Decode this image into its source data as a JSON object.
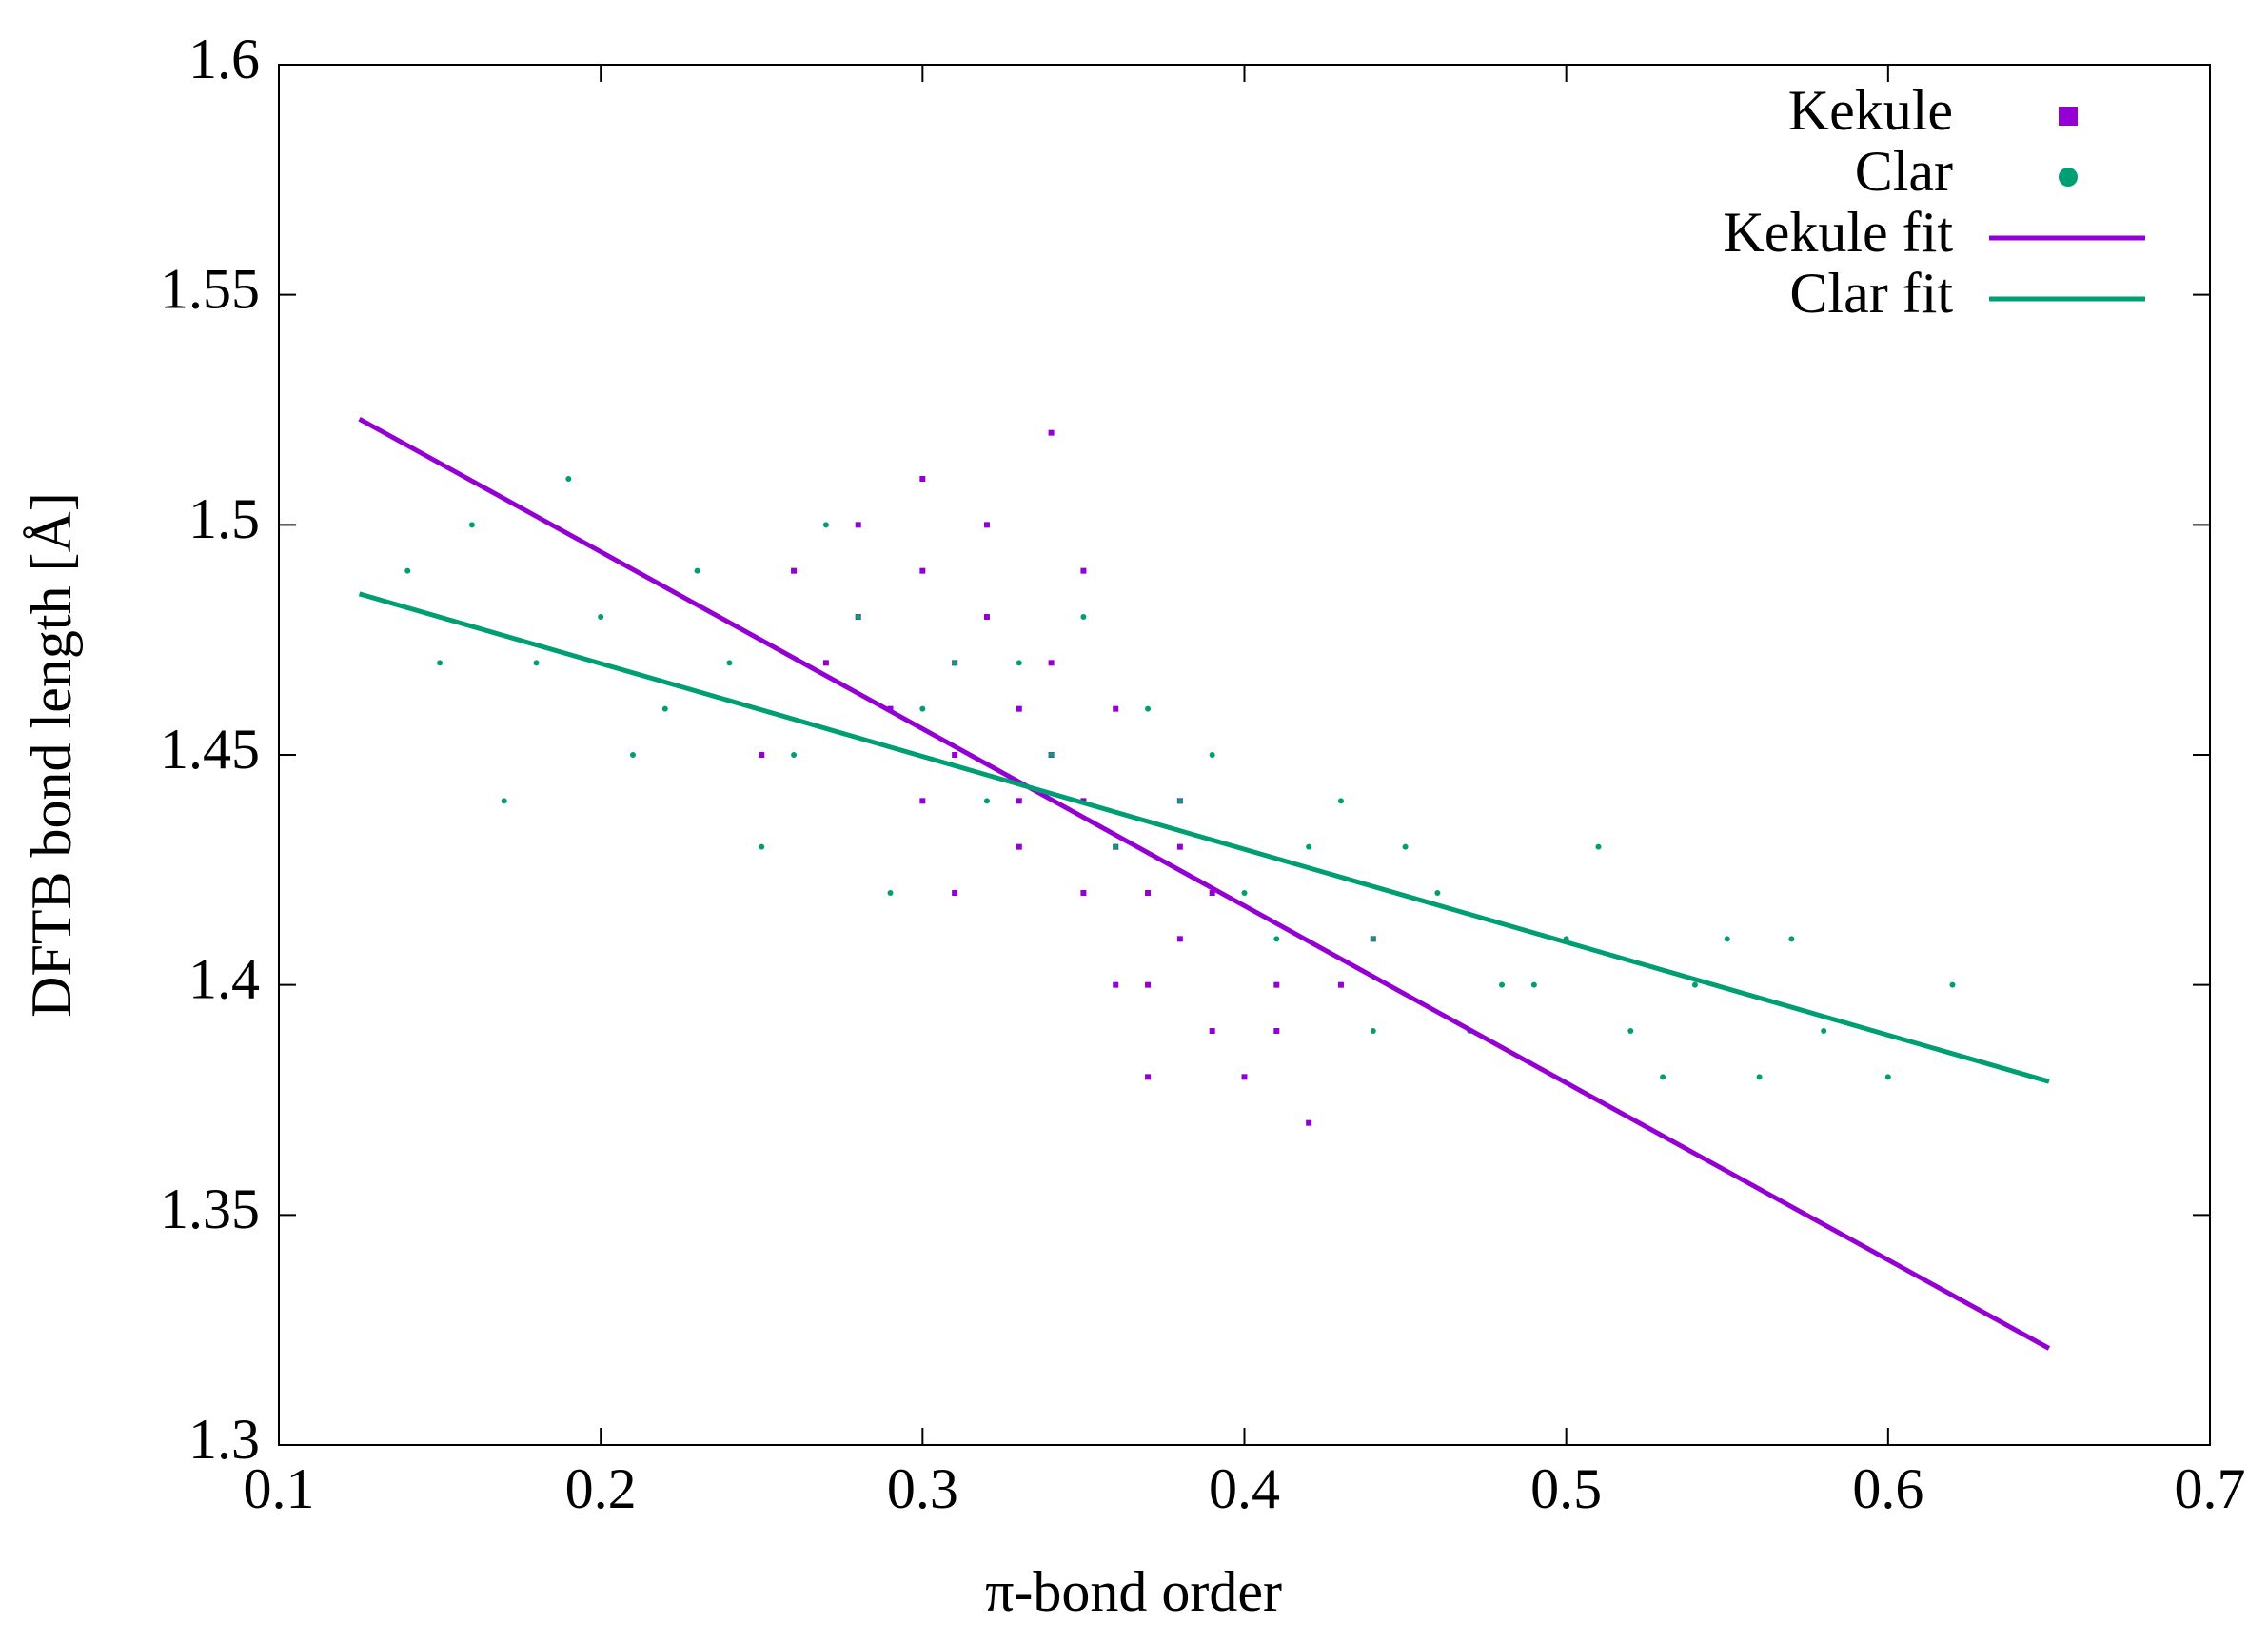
{
  "chart_data": {
    "type": "scatter",
    "x_label": "π-bond order",
    "y_label": "DFTB bond length [Å]",
    "xlim": [
      0.1,
      0.7
    ],
    "ylim": [
      1.3,
      1.6
    ],
    "xticks": [
      0.1,
      0.2,
      0.3,
      0.4,
      0.5,
      0.6,
      0.7
    ],
    "yticks": [
      1.3,
      1.35,
      1.4,
      1.45,
      1.5,
      1.55,
      1.6
    ],
    "grid": false,
    "legend": "top-right",
    "series": [
      {
        "name": "Kekule",
        "color": "#9400d3",
        "type": "scatter",
        "marker": "square",
        "x": [
          0.28,
          0.3,
          0.31,
          0.32,
          0.33,
          0.34,
          0.35,
          0.36,
          0.37,
          0.38,
          0.29,
          0.31,
          0.33,
          0.35,
          0.37,
          0.39,
          0.4,
          0.41,
          0.42,
          0.3,
          0.32,
          0.34,
          0.36,
          0.38,
          0.27,
          0.25,
          0.26,
          0.43,
          0.44,
          0.35,
          0.33,
          0.31,
          0.36,
          0.39,
          0.41,
          0.34,
          0.3,
          0.28,
          0.37,
          0.38
        ],
        "values": [
          1.48,
          1.49,
          1.47,
          1.5,
          1.46,
          1.45,
          1.44,
          1.43,
          1.42,
          1.41,
          1.46,
          1.45,
          1.43,
          1.42,
          1.4,
          1.39,
          1.38,
          1.39,
          1.37,
          1.51,
          1.48,
          1.47,
          1.46,
          1.44,
          1.47,
          1.45,
          1.49,
          1.4,
          1.41,
          1.49,
          1.44,
          1.42,
          1.4,
          1.42,
          1.4,
          1.52,
          1.44,
          1.5,
          1.38,
          1.43
        ]
      },
      {
        "name": "Clar",
        "color": "#009e73",
        "type": "scatter",
        "marker": "circle",
        "x": [
          0.14,
          0.16,
          0.18,
          0.2,
          0.22,
          0.24,
          0.26,
          0.28,
          0.3,
          0.32,
          0.34,
          0.36,
          0.38,
          0.4,
          0.42,
          0.44,
          0.46,
          0.48,
          0.5,
          0.52,
          0.54,
          0.56,
          0.58,
          0.6,
          0.15,
          0.19,
          0.23,
          0.27,
          0.31,
          0.35,
          0.39,
          0.43,
          0.47,
          0.51,
          0.55,
          0.21,
          0.25,
          0.29,
          0.33,
          0.37,
          0.41,
          0.45,
          0.49,
          0.53,
          0.62,
          0.17,
          0.44,
          0.57
        ],
        "values": [
          1.49,
          1.5,
          1.47,
          1.48,
          1.46,
          1.47,
          1.45,
          1.48,
          1.46,
          1.44,
          1.45,
          1.43,
          1.44,
          1.42,
          1.43,
          1.41,
          1.42,
          1.4,
          1.41,
          1.39,
          1.4,
          1.38,
          1.39,
          1.38,
          1.47,
          1.51,
          1.49,
          1.5,
          1.47,
          1.48,
          1.45,
          1.44,
          1.39,
          1.43,
          1.41,
          1.45,
          1.43,
          1.42,
          1.47,
          1.46,
          1.41,
          1.43,
          1.4,
          1.38,
          1.4,
          1.44,
          1.39,
          1.41
        ]
      },
      {
        "name": "Kekule fit",
        "color": "#9400d3",
        "type": "line",
        "x": [
          0.125,
          0.65
        ],
        "values": [
          1.523,
          1.321
        ]
      },
      {
        "name": "Clar fit",
        "color": "#009e73",
        "type": "line",
        "x": [
          0.125,
          0.65
        ],
        "values": [
          1.485,
          1.379
        ]
      }
    ]
  }
}
